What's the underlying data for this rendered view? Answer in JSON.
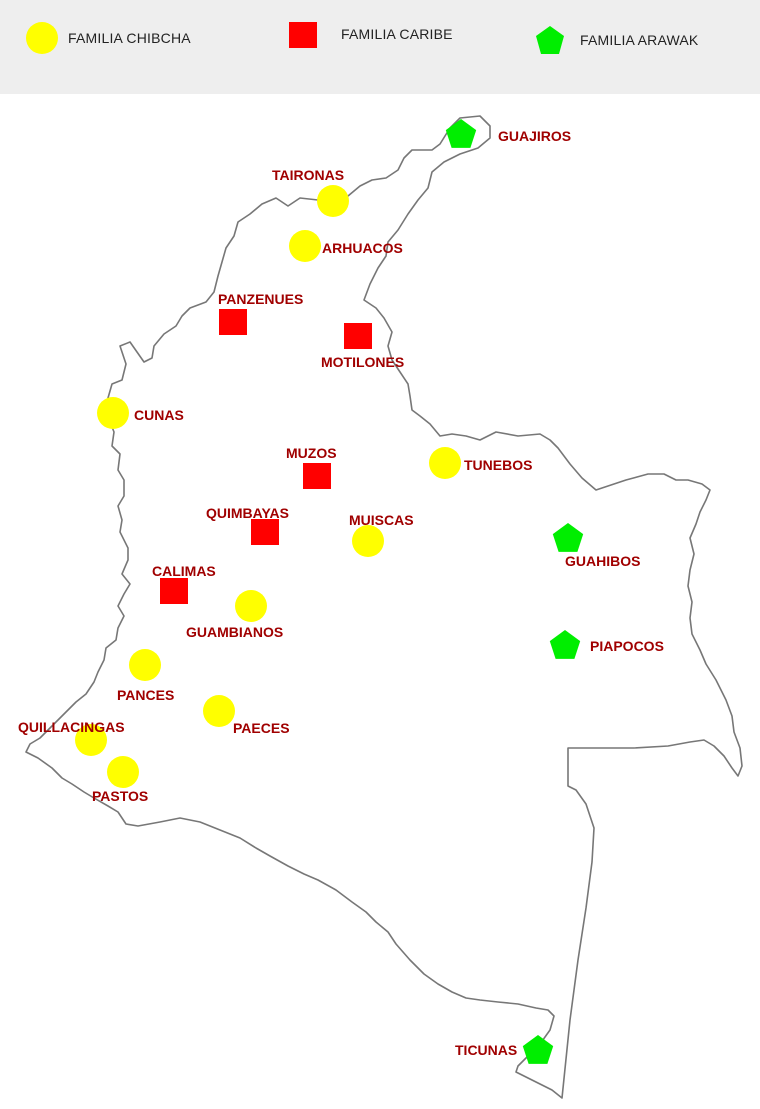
{
  "legend": {
    "chibcha": {
      "label": "FAMILIA CHIBCHA",
      "icon": "yellow-circle-icon"
    },
    "caribe": {
      "label": "FAMILIA CARIBE",
      "icon": "red-square-icon"
    },
    "arawak": {
      "label": "FAMILIA ARAWAK",
      "icon": "green-pentagon-icon"
    }
  },
  "colors": {
    "chibcha": "#ffff00",
    "caribe": "#ff0000",
    "arawak": "#00ee00",
    "label": "#a00000",
    "border": "#777777",
    "legend_bg": "#eeeeee"
  },
  "peoples": [
    {
      "name": "GUAJIROS",
      "family": "arawak"
    },
    {
      "name": "TAIRONAS",
      "family": "chibcha"
    },
    {
      "name": "ARHUACOS",
      "family": "chibcha"
    },
    {
      "name": "PANZENUES",
      "family": "caribe"
    },
    {
      "name": "MOTILONES",
      "family": "caribe"
    },
    {
      "name": "CUNAS",
      "family": "chibcha"
    },
    {
      "name": "MUZOS",
      "family": "caribe"
    },
    {
      "name": "TUNEBOS",
      "family": "chibcha"
    },
    {
      "name": "QUIMBAYAS",
      "family": "caribe"
    },
    {
      "name": "MUISCAS",
      "family": "chibcha"
    },
    {
      "name": "GUAHIBOS",
      "family": "arawak"
    },
    {
      "name": "CALIMAS",
      "family": "caribe"
    },
    {
      "name": "GUAMBIANOS",
      "family": "chibcha"
    },
    {
      "name": "PIAPOCOS",
      "family": "arawak"
    },
    {
      "name": "PANCES",
      "family": "chibcha"
    },
    {
      "name": "PAECES",
      "family": "chibcha"
    },
    {
      "name": "QUILLACINGAS",
      "family": "chibcha"
    },
    {
      "name": "PASTOS",
      "family": "chibcha"
    },
    {
      "name": "TICUNAS",
      "family": "arawak"
    }
  ]
}
